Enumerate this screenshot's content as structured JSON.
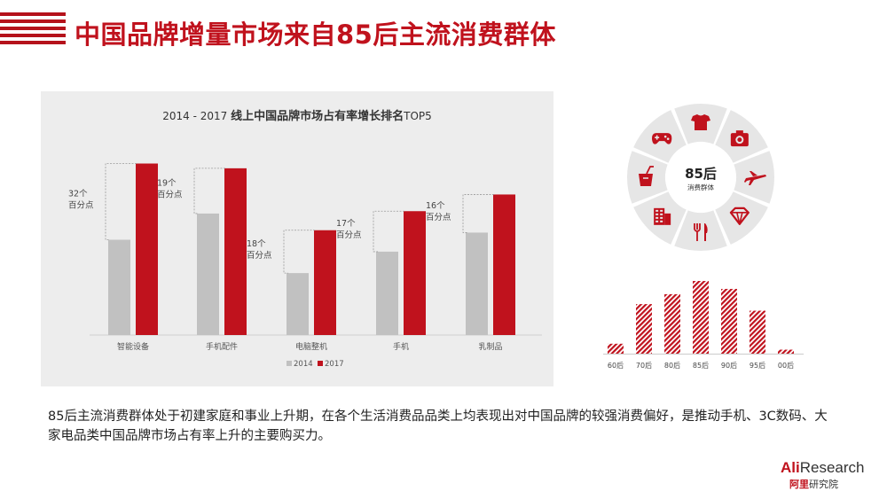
{
  "page": {
    "title": "中国品牌增量市场来自85后主流消费群体",
    "description": "85后主流消费群体处于初建家庭和事业上升期，在各个生活消费品品类上均表现出对中国品牌的较强消费偏好，是推动手机、3C数码、大家电品类中国品牌市场占有率上升的主要购买力。"
  },
  "logo": {
    "ali": "Ali",
    "research": "Research",
    "cn_ali": "阿里",
    "cn_rest": "研究院"
  },
  "donut": {
    "center_title": "85后",
    "center_subtitle": "消费群体",
    "segments": [
      "tshirt-icon",
      "camera-icon",
      "airplane-icon",
      "diamond-icon",
      "utensils-icon",
      "building-icon",
      "drink-icon",
      "gamepad-icon"
    ],
    "colors": {
      "segment": "#e6e6e6",
      "icon": "#c0121d"
    }
  },
  "chart_data": [
    {
      "type": "bar",
      "title_prefix": "2014 - 2017",
      "title": "线上中国品牌市场占有率增长排名",
      "title_suffix": "TOP5",
      "categories": [
        "智能设备",
        "手机配件",
        "电脑整机",
        "手机",
        "乳制品"
      ],
      "series": [
        {
          "name": "2014",
          "values": [
            40,
            51,
            26,
            35,
            43
          ],
          "color": "#c1c1c1"
        },
        {
          "name": "2017",
          "values": [
            72,
            70,
            44,
            52,
            59
          ],
          "color": "#c0121d"
        }
      ],
      "annotations": [
        {
          "line1": "32个",
          "line2": "百分点"
        },
        {
          "line1": "19个",
          "line2": "百分点"
        },
        {
          "line1": "18个",
          "line2": "百分点"
        },
        {
          "line1": "17个",
          "line2": "百分点"
        },
        {
          "line1": "16个",
          "line2": "百分点"
        }
      ],
      "ylim": [
        0,
        80
      ],
      "legend": "bottom-center"
    },
    {
      "type": "bar",
      "categories": [
        "60后",
        "70后",
        "80后",
        "85后",
        "90后",
        "95后",
        "00后"
      ],
      "values": [
        1.5,
        7.5,
        9,
        11,
        9.8,
        6.5,
        0.6
      ],
      "ylim": [
        0,
        11
      ],
      "color": "#c0121d",
      "pattern": "diagonal-hatch"
    }
  ]
}
